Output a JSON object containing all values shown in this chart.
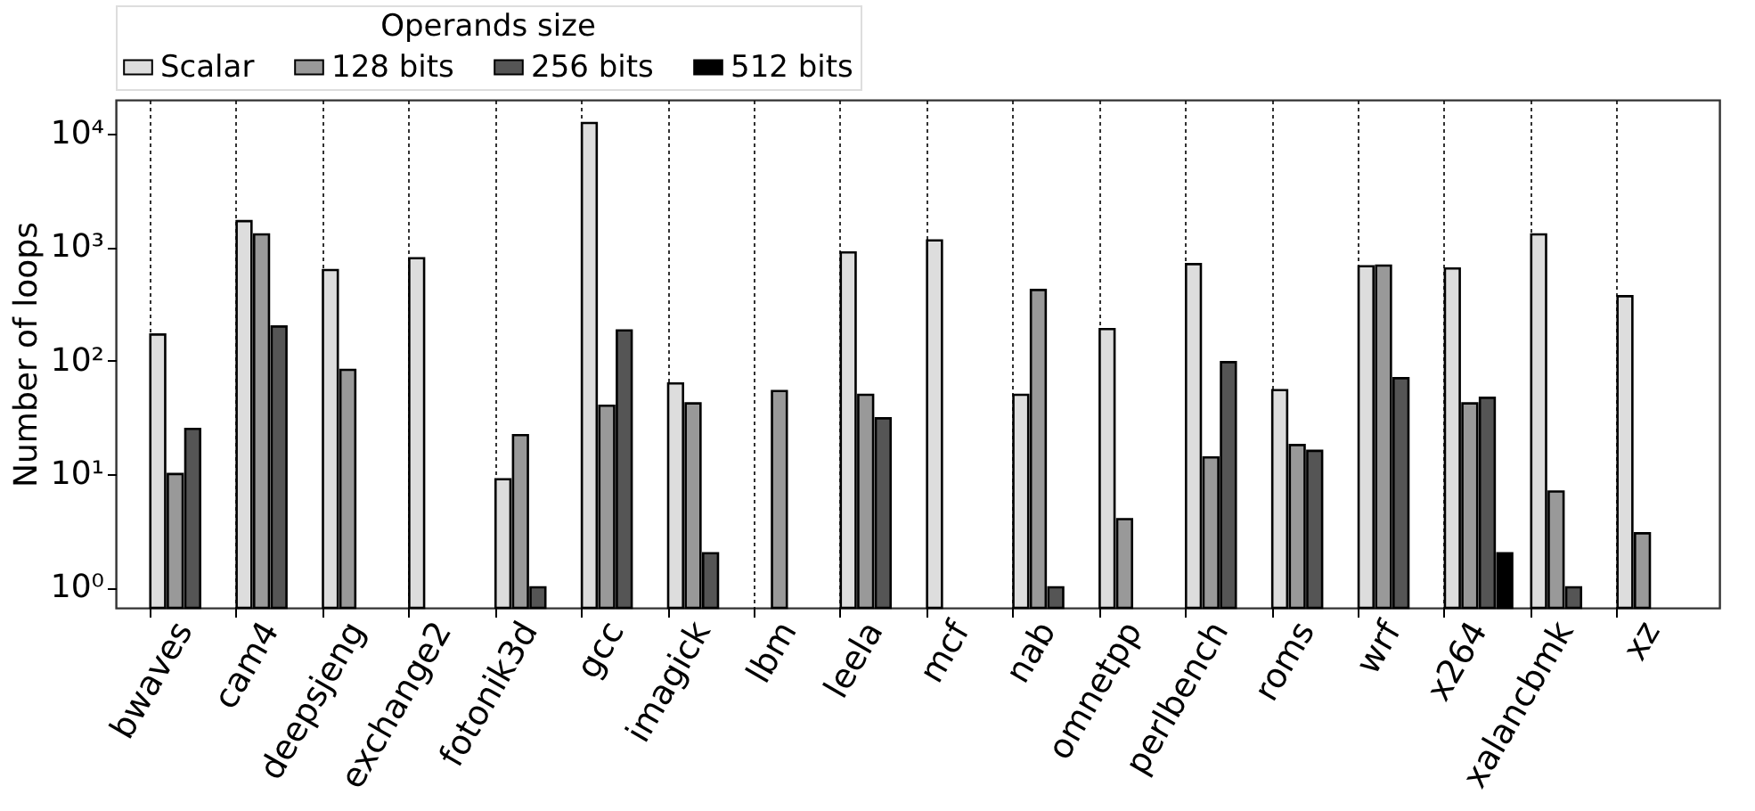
{
  "chart_data": {
    "type": "bar",
    "ylabel": "Number of loops",
    "legend_title": "Operands size",
    "legend": "top",
    "log": true,
    "grid": "x",
    "categories": [
      "bwaves",
      "cam4",
      "deepsjeng",
      "exchange2",
      "fotonik3d",
      "gcc",
      "imagick",
      "lbm",
      "leela",
      "mcf",
      "nab",
      "omnetpp",
      "perlbench",
      "roms",
      "wrf",
      "x264",
      "xalancbmk",
      "xz"
    ],
    "ylim": [
      0.66,
      20000
    ],
    "yticks": [
      {
        "value": 1,
        "label": "10⁰"
      },
      {
        "value": 10,
        "label": "10¹"
      },
      {
        "value": 100,
        "label": "10²"
      },
      {
        "value": 1000,
        "label": "10³"
      },
      {
        "value": 10000,
        "label": "10⁴"
      }
    ],
    "series": [
      {
        "name": "Scalar",
        "color": "#dddddd",
        "values": [
          170,
          1700,
          630,
          800,
          9,
          12500,
          63,
          null,
          900,
          1150,
          50,
          190,
          710,
          55,
          680,
          650,
          1300,
          370
        ]
      },
      {
        "name": "128 bits",
        "color": "#999999",
        "values": [
          10,
          1300,
          83,
          null,
          22,
          40,
          42,
          54,
          50,
          null,
          420,
          4,
          14,
          18,
          690,
          42,
          7,
          3
        ]
      },
      {
        "name": "256 bits",
        "color": "#555555",
        "values": [
          25,
          200,
          null,
          null,
          1,
          185,
          2,
          null,
          31,
          null,
          1,
          null,
          97,
          16,
          70,
          47,
          1,
          null
        ]
      },
      {
        "name": "512 bits",
        "color": "#000000",
        "values": [
          null,
          null,
          null,
          null,
          null,
          null,
          null,
          null,
          null,
          null,
          null,
          null,
          null,
          null,
          null,
          2,
          null,
          null
        ]
      }
    ]
  }
}
